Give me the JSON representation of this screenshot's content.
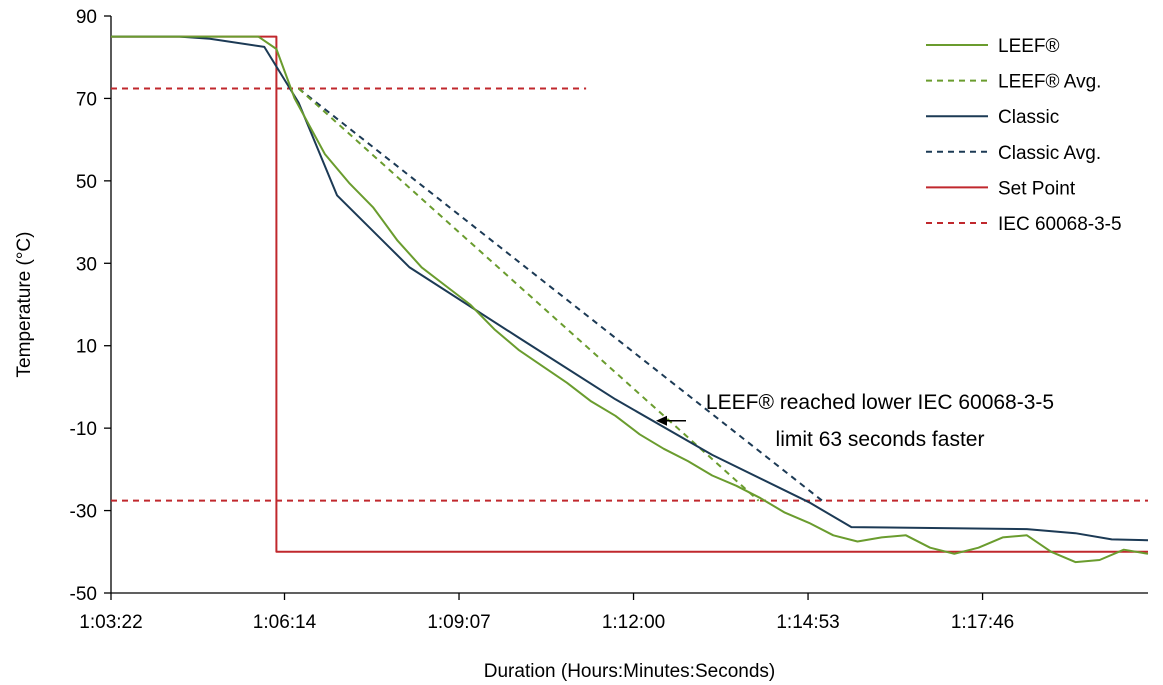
{
  "chart_data": {
    "type": "line",
    "title": "",
    "xlabel": "Duration (Hours:Minutes:Seconds)",
    "ylabel": "Temperature (°C)",
    "x_unit": "h:mm:ss",
    "x_ticks": [
      "1:03:22",
      "1:06:14",
      "1:09:07",
      "1:12:00",
      "1:14:53",
      "1:17:46"
    ],
    "xlim": [
      "1:03:22",
      "1:20:30"
    ],
    "y_ticks": [
      90,
      70,
      50,
      30,
      10,
      -10,
      -30,
      -50
    ],
    "ylim": [
      -50,
      90
    ],
    "grid": false,
    "legend": "top-right",
    "series": [
      {
        "name": "LEEF®",
        "color": "#6a9c2e",
        "dash": "solid",
        "points": [
          [
            "1:03:22",
            85
          ],
          [
            "1:04:00",
            85
          ],
          [
            "1:04:30",
            85
          ],
          [
            "1:05:00",
            85
          ],
          [
            "1:05:30",
            85
          ],
          [
            "1:05:48",
            85
          ],
          [
            "1:06:06",
            82
          ],
          [
            "1:06:24",
            70
          ],
          [
            "1:06:54",
            56.5
          ],
          [
            "1:07:18",
            49.5
          ],
          [
            "1:07:42",
            43.5
          ],
          [
            "1:08:06",
            35.5
          ],
          [
            "1:08:30",
            29
          ],
          [
            "1:08:54",
            24.5
          ],
          [
            "1:09:18",
            20
          ],
          [
            "1:09:42",
            14
          ],
          [
            "1:10:06",
            9
          ],
          [
            "1:10:30",
            5
          ],
          [
            "1:10:54",
            1
          ],
          [
            "1:11:18",
            -3.5
          ],
          [
            "1:11:42",
            -7
          ],
          [
            "1:12:06",
            -11.5
          ],
          [
            "1:12:30",
            -15
          ],
          [
            "1:12:54",
            -18
          ],
          [
            "1:13:18",
            -21.5
          ],
          [
            "1:13:42",
            -24
          ],
          [
            "1:14:06",
            -27
          ],
          [
            "1:14:30",
            -30.5
          ],
          [
            "1:14:54",
            -33
          ],
          [
            "1:15:18",
            -36
          ],
          [
            "1:15:42",
            -37.5
          ],
          [
            "1:16:06",
            -36.5
          ],
          [
            "1:16:30",
            -36
          ],
          [
            "1:16:54",
            -39
          ],
          [
            "1:17:18",
            -40.5
          ],
          [
            "1:17:42",
            -39
          ],
          [
            "1:18:06",
            -36.5
          ],
          [
            "1:18:30",
            -36
          ],
          [
            "1:18:54",
            -40
          ],
          [
            "1:19:18",
            -42.5
          ],
          [
            "1:19:42",
            -42
          ],
          [
            "1:20:06",
            -39.5
          ],
          [
            "1:20:30",
            -40.5
          ]
        ]
      },
      {
        "name": "LEEF® Avg.",
        "color": "#6a9c2e",
        "dash": "dashed",
        "points": [
          [
            "1:06:28",
            72.4
          ],
          [
            "1:14:04",
            -27.6
          ]
        ]
      },
      {
        "name": "Classic",
        "color": "#1c3a55",
        "dash": "solid",
        "points": [
          [
            "1:03:22",
            85
          ],
          [
            "1:04:30",
            85
          ],
          [
            "1:05:00",
            84.5
          ],
          [
            "1:05:54",
            82.5
          ],
          [
            "1:06:28",
            69
          ],
          [
            "1:07:06",
            46.5
          ],
          [
            "1:08:18",
            29
          ],
          [
            "1:10:06",
            12
          ],
          [
            "1:11:42",
            -3
          ],
          [
            "1:13:18",
            -16.5
          ],
          [
            "1:14:54",
            -28
          ],
          [
            "1:15:36",
            -34
          ],
          [
            "1:18:30",
            -34.5
          ],
          [
            "1:19:18",
            -35.5
          ],
          [
            "1:19:54",
            -37
          ],
          [
            "1:20:30",
            -37.2
          ]
        ]
      },
      {
        "name": "Classic Avg.",
        "color": "#1c3a55",
        "dash": "dashed",
        "points": [
          [
            "1:06:28",
            72.4
          ],
          [
            "1:15:07",
            -27.6
          ]
        ]
      },
      {
        "name": "Set Point",
        "color": "#c0282d",
        "dash": "solid",
        "points": [
          [
            "1:03:22",
            85
          ],
          [
            "1:06:06",
            85
          ],
          [
            "1:06:06",
            -40
          ],
          [
            "1:20:30",
            -40
          ]
        ]
      },
      {
        "name": "IEC 60068-3-5",
        "color": "#c0282d",
        "dash": "dashed",
        "upper": {
          "value": 72.4,
          "x_end": "1:11:13"
        },
        "lower": {
          "value": -27.6,
          "x_end": "1:20:30"
        }
      }
    ],
    "annotations": [
      {
        "lines": [
          "LEEF® reached lower IEC 60068-3-5",
          "limit 63 seconds faster"
        ],
        "arrow_y": -8.2
      }
    ]
  }
}
